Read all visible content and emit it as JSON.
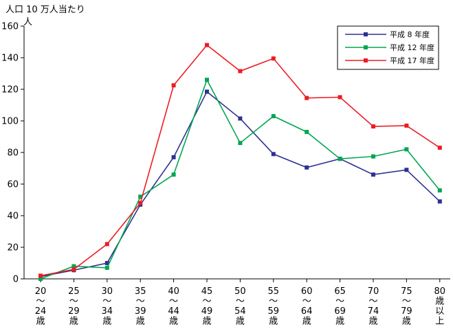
{
  "chart_data": {
    "type": "line",
    "ylabel_line1": "人口 10 万人当たり",
    "ylabel_line2": "人",
    "ylim": [
      0,
      160
    ],
    "yticks": [
      0,
      20,
      40,
      60,
      80,
      100,
      120,
      140,
      160
    ],
    "categories": [
      [
        "20",
        "〜",
        "24",
        "歳"
      ],
      [
        "25",
        "〜",
        "29",
        "歳"
      ],
      [
        "30",
        "〜",
        "34",
        "歳"
      ],
      [
        "35",
        "〜",
        "39",
        "歳"
      ],
      [
        "40",
        "〜",
        "44",
        "歳"
      ],
      [
        "45",
        "〜",
        "49",
        "歳"
      ],
      [
        "50",
        "〜",
        "54",
        "歳"
      ],
      [
        "55",
        "〜",
        "59",
        "歳"
      ],
      [
        "60",
        "〜",
        "64",
        "歳"
      ],
      [
        "65",
        "〜",
        "69",
        "歳"
      ],
      [
        "70",
        "〜",
        "74",
        "歳"
      ],
      [
        "75",
        "〜",
        "79",
        "歳"
      ],
      [
        "80",
        "歳",
        "以",
        "上"
      ]
    ],
    "legend_position": "top-right",
    "series": [
      {
        "name": "平成  8 年度",
        "color": "#2e3192",
        "values": [
          1.5,
          5.5,
          10,
          47,
          77,
          118.5,
          101.5,
          79,
          70.5,
          76,
          66,
          69,
          49
        ]
      },
      {
        "name": "平成 12 年度",
        "color": "#00a651",
        "values": [
          0,
          8,
          7,
          52,
          66,
          126,
          86,
          103,
          93,
          76,
          77.5,
          82,
          56
        ]
      },
      {
        "name": "平成 17 年度",
        "color": "#ed1c24",
        "values": [
          2,
          6,
          22,
          48,
          122.5,
          148,
          131.5,
          139.5,
          114.5,
          115,
          96.5,
          97,
          83
        ]
      }
    ]
  }
}
